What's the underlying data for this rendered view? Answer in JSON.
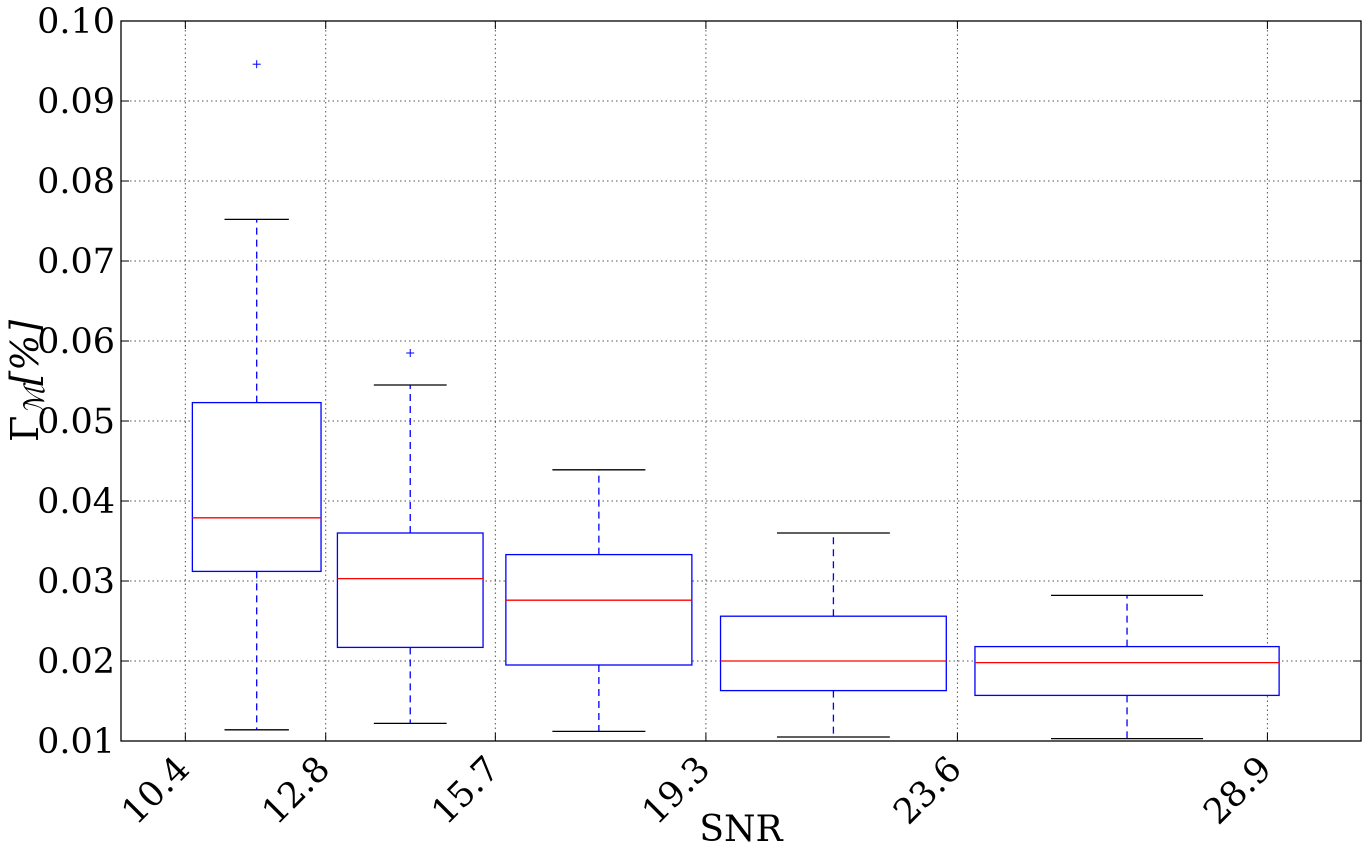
{
  "chart_data": {
    "type": "box",
    "title": "",
    "xlabel": "SNR",
    "ylabel": {
      "symbol": "Γ",
      "subscript": "ℳ",
      "unit": "[%]"
    },
    "x_scale": "linear",
    "xlim": [
      9.3,
      30.5
    ],
    "ylim": [
      0.01,
      0.1
    ],
    "x_ticks": [
      10.4,
      12.8,
      15.7,
      19.3,
      23.6,
      28.9
    ],
    "x_tick_labels": [
      "10.4",
      "12.8",
      "15.7",
      "19.3",
      "23.6",
      "28.9"
    ],
    "y_ticks": [
      0.01,
      0.02,
      0.03,
      0.04,
      0.05,
      0.06,
      0.07,
      0.08,
      0.09,
      0.1
    ],
    "y_tick_labels": [
      "0.01",
      "0.02",
      "0.03",
      "0.04",
      "0.05",
      "0.06",
      "0.07",
      "0.08",
      "0.09",
      "0.10"
    ],
    "grid": true,
    "boxes": [
      {
        "x_left": 10.52,
        "x_right": 12.72,
        "whislo": 0.0114,
        "q1": 0.0312,
        "med": 0.0379,
        "q3": 0.0523,
        "whishi": 0.0752,
        "fliers": [
          0.0946
        ]
      },
      {
        "x_left": 13.0,
        "x_right": 15.49,
        "whislo": 0.0122,
        "q1": 0.0217,
        "med": 0.0303,
        "q3": 0.036,
        "whishi": 0.0545,
        "fliers": [
          0.0585
        ]
      },
      {
        "x_left": 15.88,
        "x_right": 19.06,
        "whislo": 0.0112,
        "q1": 0.0195,
        "med": 0.0276,
        "q3": 0.0333,
        "whishi": 0.0439,
        "fliers": []
      },
      {
        "x_left": 19.55,
        "x_right": 23.41,
        "whislo": 0.0105,
        "q1": 0.0163,
        "med": 0.02,
        "q3": 0.0256,
        "whishi": 0.036,
        "fliers": []
      },
      {
        "x_left": 23.9,
        "x_right": 29.1,
        "whislo": 0.0103,
        "q1": 0.0157,
        "med": 0.0198,
        "q3": 0.0218,
        "whishi": 0.0282,
        "fliers": []
      }
    ],
    "colors": {
      "box": "#0000ff",
      "median": "#ff0000",
      "whisker": "#0000ff",
      "cap": "#000000",
      "flier": "#0000ff",
      "grid": "#555555"
    }
  }
}
